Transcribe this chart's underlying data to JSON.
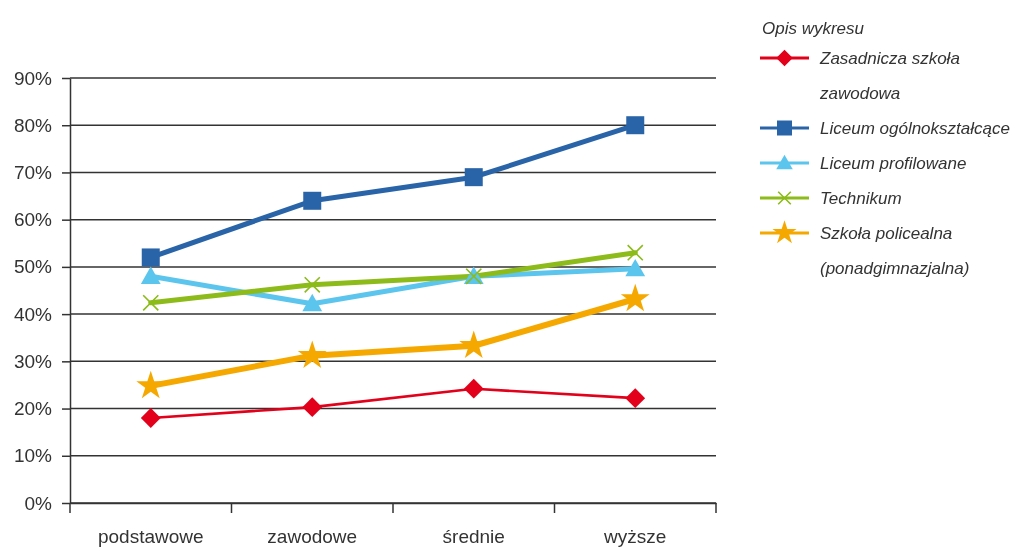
{
  "chart_data": {
    "type": "line",
    "categories": [
      "podstawowe",
      "zawodowe",
      "średnie",
      "wyższe"
    ],
    "series": [
      {
        "name": "Zasadnicza szkoła zawodowa",
        "color": "#e2001a",
        "marker": "diamond",
        "values": [
          18.0,
          20.3,
          24.2,
          22.2
        ]
      },
      {
        "name": "Liceum ogólnokształcące",
        "color": "#2a64a8",
        "marker": "square",
        "values": [
          52.0,
          64.0,
          69.0,
          80.0
        ]
      },
      {
        "name": "Liceum profilowane",
        "color": "#5bc5ed",
        "marker": "triangle",
        "values": [
          48.0,
          42.2,
          48.0,
          49.6
        ]
      },
      {
        "name": "Technikum",
        "color": "#8cbb1a",
        "marker": "cross",
        "values": [
          42.4,
          46.2,
          48.0,
          53.0
        ]
      },
      {
        "name": "Szkoła policealna (ponadgimnazjalna)",
        "color": "#f5a800",
        "marker": "star",
        "values": [
          24.8,
          31.2,
          33.3,
          43.2
        ]
      }
    ],
    "ylim": [
      0,
      90
    ],
    "yticks": [
      {
        "value": 0,
        "label": "0%"
      },
      {
        "value": 10,
        "label": "10%"
      },
      {
        "value": 20,
        "label": "20%"
      },
      {
        "value": 30,
        "label": "30%"
      },
      {
        "value": 40,
        "label": "40%"
      },
      {
        "value": 50,
        "label": "50%"
      },
      {
        "value": 60,
        "label": "60%"
      },
      {
        "value": 70,
        "label": "70%"
      },
      {
        "value": 80,
        "label": "80%"
      },
      {
        "value": 90,
        "label": "90%"
      }
    ],
    "grid": "y",
    "legend": "top right",
    "legend_title": "Opis wykresu"
  }
}
